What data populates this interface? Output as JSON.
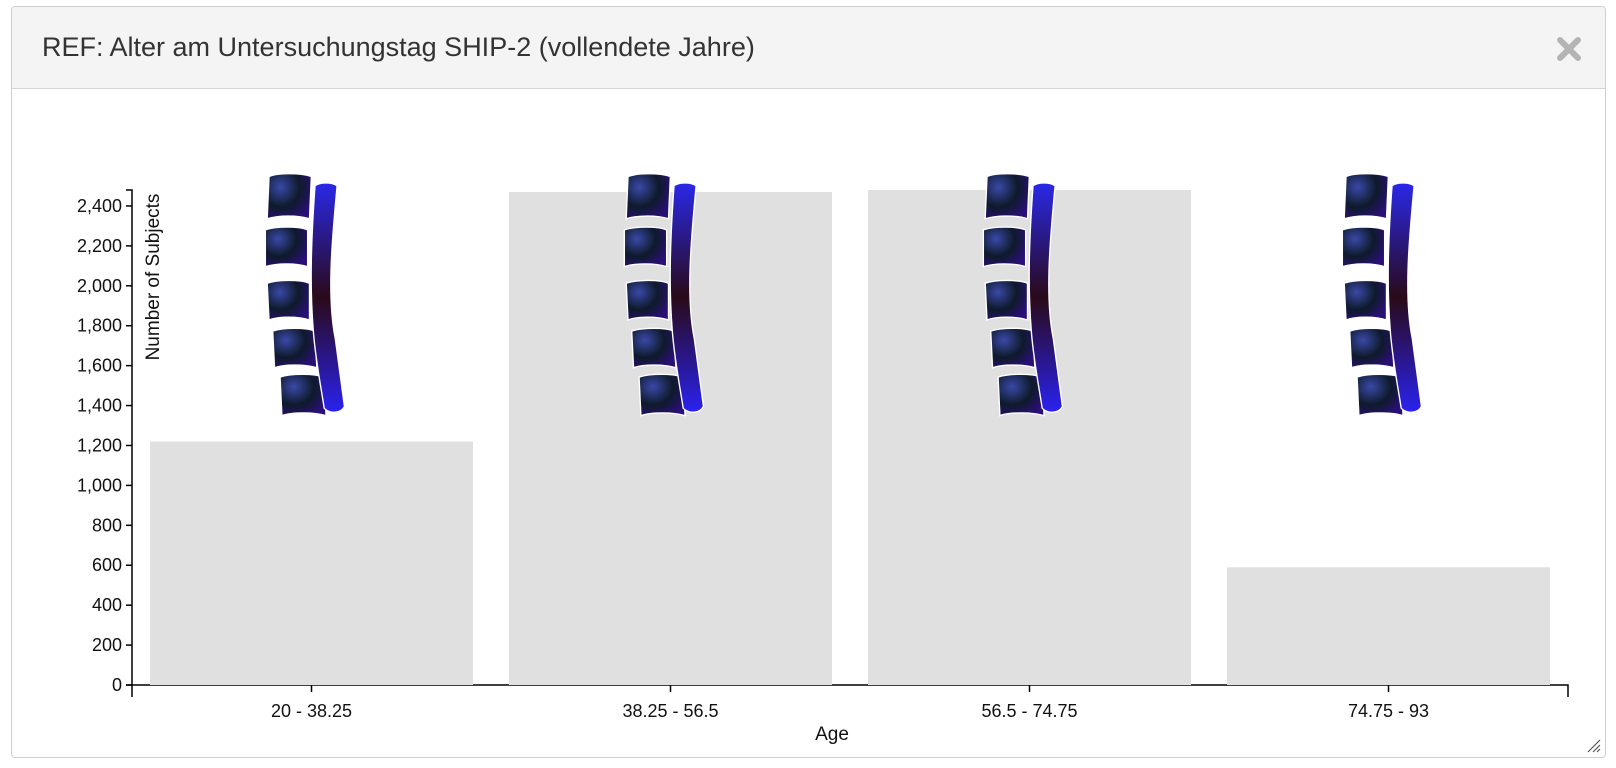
{
  "dialog": {
    "title": "REF: Alter am Untersuchungstag SHIP-2 (vollendete Jahre)",
    "close_icon": "close-icon",
    "resize_icon": "resize-grip-icon"
  },
  "colors": {
    "bar": "#e0e0e0",
    "axis": "#000000",
    "spine_vertebra_tint": "#2a1a8a",
    "spine_column_tint": "#1e22d8"
  },
  "chart_data": {
    "type": "bar",
    "title": "",
    "xlabel": "Age",
    "ylabel": "Number of Subjects",
    "categories": [
      "20 - 38.25",
      "38.25 - 56.5",
      "56.5 - 74.75",
      "74.75 - 93"
    ],
    "values": [
      1220,
      2470,
      2480,
      590
    ],
    "ylim": [
      0,
      2480
    ],
    "yticks": [
      0,
      200,
      400,
      600,
      800,
      1000,
      1200,
      1400,
      1600,
      1800,
      2000,
      2200,
      2400
    ],
    "ytick_labels": [
      "0",
      "200",
      "400",
      "600",
      "800",
      "1,000",
      "1,200",
      "1,400",
      "1,600",
      "1,800",
      "2,000",
      "2,200",
      "2,400"
    ],
    "grid": false,
    "legend": "none",
    "annotations": "lumbar spine icon above each bar"
  }
}
